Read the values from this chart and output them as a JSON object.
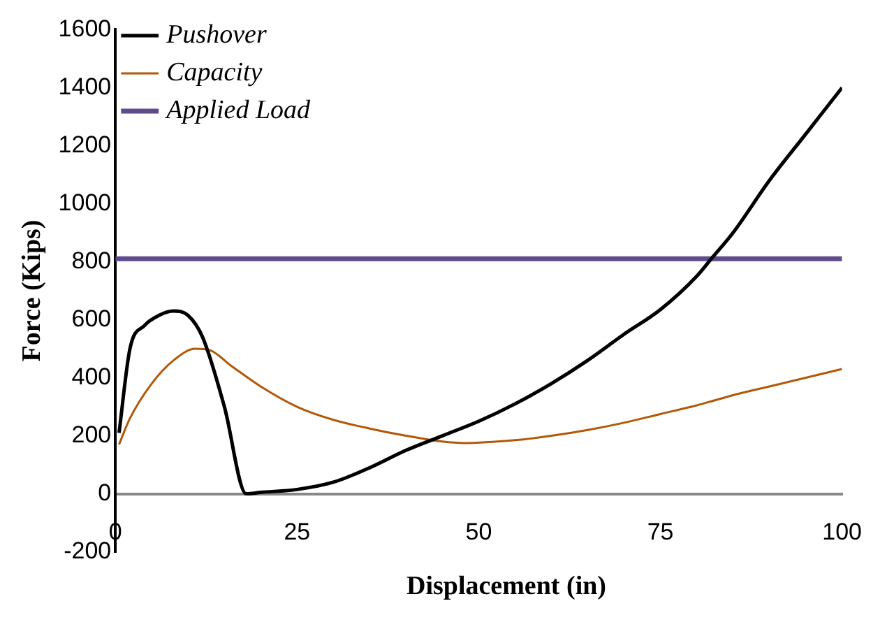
{
  "chart_data": {
    "type": "line",
    "xlabel": "Displacement (in)",
    "ylabel": "Force (Kips)",
    "xlim": [
      0,
      100
    ],
    "xticks": [
      0,
      25,
      50,
      75,
      100
    ],
    "ylim": [
      -200,
      1600
    ],
    "yticks": [
      -200,
      0,
      200,
      400,
      600,
      800,
      1000,
      1200,
      1400,
      1600
    ],
    "grid": false,
    "legend": "top left",
    "marker": "none",
    "series": [
      {
        "name": "Pushover",
        "color": "#000000",
        "x": [
          0.5,
          2,
          4,
          6,
          8,
          10,
          12,
          15,
          18,
          20,
          25,
          30,
          35,
          40,
          45,
          50,
          55,
          60,
          65,
          70,
          75,
          80,
          82,
          85,
          90,
          95,
          100
        ],
        "values": [
          210,
          500,
          580,
          615,
          630,
          615,
          540,
          300,
          0,
          5,
          15,
          40,
          90,
          150,
          200,
          250,
          310,
          380,
          460,
          550,
          635,
          750,
          810,
          900,
          1080,
          1240,
          1400
        ]
      },
      {
        "name": "Capacity",
        "color": "#b35806",
        "x": [
          0.5,
          2,
          5,
          8,
          11,
          13,
          16,
          20,
          25,
          30,
          35,
          40,
          45,
          48,
          55,
          60,
          65,
          70,
          75,
          80,
          85,
          90,
          95,
          100
        ],
        "values": [
          170,
          260,
          380,
          460,
          500,
          495,
          440,
          370,
          300,
          255,
          225,
          200,
          180,
          175,
          185,
          200,
          220,
          245,
          275,
          305,
          340,
          370,
          400,
          430
        ]
      },
      {
        "name": "Applied Load",
        "color": "#5f4b8b",
        "x": [
          0,
          100
        ],
        "values": [
          810,
          810
        ]
      }
    ]
  }
}
